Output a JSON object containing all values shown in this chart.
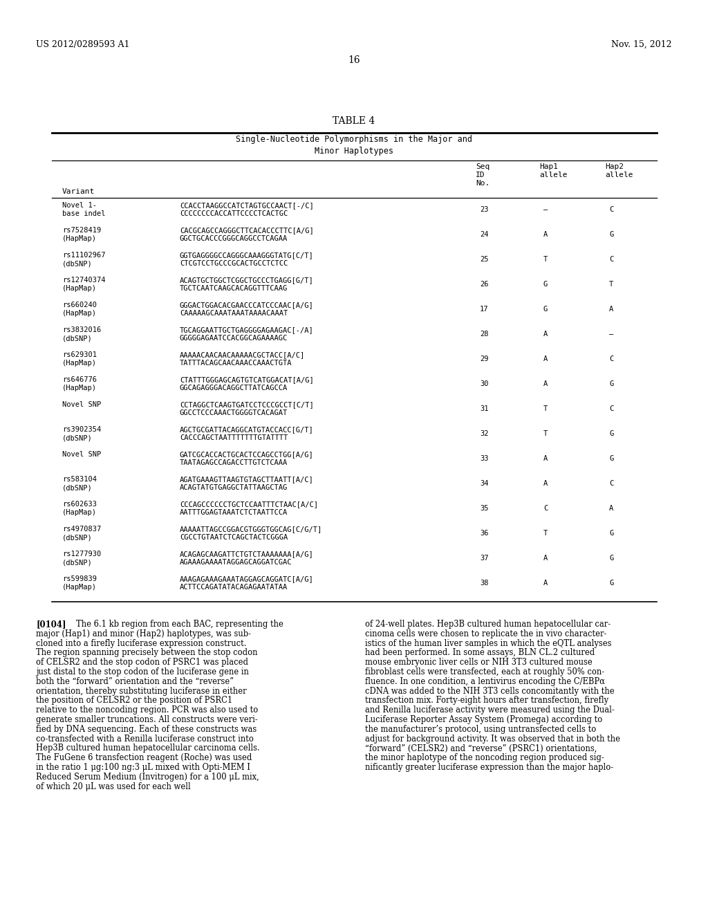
{
  "header_left": "US 2012/0289593 A1",
  "header_right": "Nov. 15, 2012",
  "page_number": "16",
  "table_title": "TABLE 4",
  "table_subtitle_line1": "Single-Nucleotide Polymorphisms in the Major and",
  "table_subtitle_line2": "Minor Haplotypes",
  "table_rows": [
    [
      "Novel 1-",
      "base indel",
      "CCACCTAAGGCCATCTAGTGCCAACT[-/C]",
      "CCCCCCCCACCATTCCCCTCACTGC",
      "23",
      "—",
      "C"
    ],
    [
      "rs7528419",
      "(HapMap)",
      "CACGCAGCCAGGGCTTCACACCCTTC[A/G]",
      "GGCTGCACCCGGGCAGGCCTCAGAA",
      "24",
      "A",
      "G"
    ],
    [
      "rs11102967",
      "(dbSNP)",
      "GGTGAGGGGCCAGGGCAAAGGGTATG[C/T]",
      "CTCGTCCTGCCCGCACTGCCTCTCC",
      "25",
      "T",
      "C"
    ],
    [
      "rs12740374",
      "(HapMap)",
      "ACAGTGCTGGCTCGGCTGCCCTGAGG[G/T]",
      "TGCTCAATCAAGCACAGGTTTCAAG",
      "26",
      "G",
      "T"
    ],
    [
      "rs660240",
      "(HapMap)",
      "GGGACTGGACACGAACCCATCCCAAC[A/G]",
      "CAAAAAGCAAATAAATAAAACAAAT",
      "17",
      "G",
      "A"
    ],
    [
      "rs3832016",
      "(dbSNP)",
      "TGCAGGAATTGCTGAGGGGAGAAGAC[-/A]",
      "GGGGGAGAATCCACGGCAGAAAAGC",
      "28",
      "A",
      "—"
    ],
    [
      "rs629301",
      "(HapMap)",
      "AAAAACAACAACAAAAACGCTACC[A/C]",
      "TATTTACAGCAACAAACCAAACTGTA",
      "29",
      "A",
      "C"
    ],
    [
      "rs646776",
      "(HapMap)",
      "CTATTTGGGAGCAGTGTCATGGACAT[A/G]",
      "GGCAGAGGGACAGGCTTATCAGCCA",
      "30",
      "A",
      "G"
    ],
    [
      "Novel SNP",
      "",
      "CCTAGGCTCAAGTGATCCTCCCGCCT[C/T]",
      "GGCCTCCCAAACTGGGGTCACAGAT",
      "31",
      "T",
      "C"
    ],
    [
      "rs3902354",
      "(dbSNP)",
      "AGCTGCGATTACAGGCATGTACCACC[G/T]",
      "CACCCAGCTAATTTTTTTGTATTTT",
      "32",
      "T",
      "G"
    ],
    [
      "Novel SNP",
      "",
      "GATCGCACCACTGCACTCCAGCCTGG[A/G]",
      "TAATAGAGCCAGACCTTGTCTCAAA",
      "33",
      "A",
      "G"
    ],
    [
      "rs583104",
      "(dbSNP)",
      "AGATGAAAGTTAAGTGTAGCTTAATT[A/C]",
      "ACAGTATGTGAGGCTATTAAGCTAG",
      "34",
      "A",
      "C"
    ],
    [
      "rs602633",
      "(HapMap)",
      "CCCAGCCCCCCTGCTCCAATTTCTAAC[A/C]",
      "AATTTGGAGTAAATCTCTAATTCCA",
      "35",
      "C",
      "A"
    ],
    [
      "rs4970837",
      "(dbSNP)",
      "AAAAATTAGCCGGACGTGGGTGGCAG[C/G/T]",
      "CGCCTGTAATCTCAGCTACTCGGGA",
      "36",
      "T",
      "G"
    ],
    [
      "rs1277930",
      "(dbSNP)",
      "ACAGAGCAAGATTCTGTCTAAAAAAA[A/G]",
      "AGAAAGAAAATAGGAGCAGGATCGAC",
      "37",
      "A",
      "G"
    ],
    [
      "rs599839",
      "(HapMap)",
      "AAAGAGAAAGAAATAGGAGCAGGATC[A/G]",
      "ACTTCCAGATATACAGAGAATATAA",
      "38",
      "A",
      "G"
    ]
  ],
  "para_label": "[0104]",
  "para_left_lines": [
    "The 6.1 kb region from each BAC, representing the",
    "major (Hap1) and minor (Hap2) haplotypes, was sub-",
    "cloned into a firefly luciferase expression construct.",
    "The region spanning precisely between the stop codon",
    "of CELSR2 and the stop codon of PSRC1 was placed",
    "just distal to the stop codon of the luciferase gene in",
    "both the “forward” orientation and the “reverse”",
    "orientation, thereby substituting luciferase in either",
    "the position of CELSR2 or the position of PSRC1",
    "relative to the noncoding region. PCR was also used to",
    "generate smaller truncations. All constructs were veri-",
    "fied by DNA sequencing. Each of these constructs was",
    "co-transfected with a Renilla luciferase construct into",
    "Hep3B cultured human hepatocellular carcinoma cells.",
    "The FuGene 6 transfection reagent (Roche) was used",
    "in the ratio 1 μg:100 ng:3 μL mixed with Opti-MEM I",
    "Reduced Serum Medium (Invitrogen) for a 100 μL mix,",
    "of which 20 μL was used for each well"
  ],
  "para_right_lines": [
    "of 24-well plates. Hep3B cultured human hepatocellular car-",
    "cinoma cells were chosen to replicate the in vivo character-",
    "istics of the human liver samples in which the eQTL analyses",
    "had been performed. In some assays, BLN CL.2 cultured",
    "mouse embryonic liver cells or NIH 3T3 cultured mouse",
    "fibroblast cells were transfected, each at roughly 50% con-",
    "fluence. In one condition, a lentivirus encoding the C/EBPα",
    "cDNA was added to the NIH 3T3 cells concomitantly with the",
    "transfection mix. Forty-eight hours after transfection, firefly",
    "and Renilla luciferase activity were measured using the Dual-",
    "Luciferase Reporter Assay System (Promega) according to",
    "the manufacturer’s protocol, using untransfected cells to",
    "adjust for background activity. It was observed that in both the",
    "“forward” (CELSR2) and “reverse” (PSRC1) orientations,",
    "the minor haplotype of the noncoding region produced sig-",
    "nificantly greater luciferase expression than the major haplo-"
  ]
}
